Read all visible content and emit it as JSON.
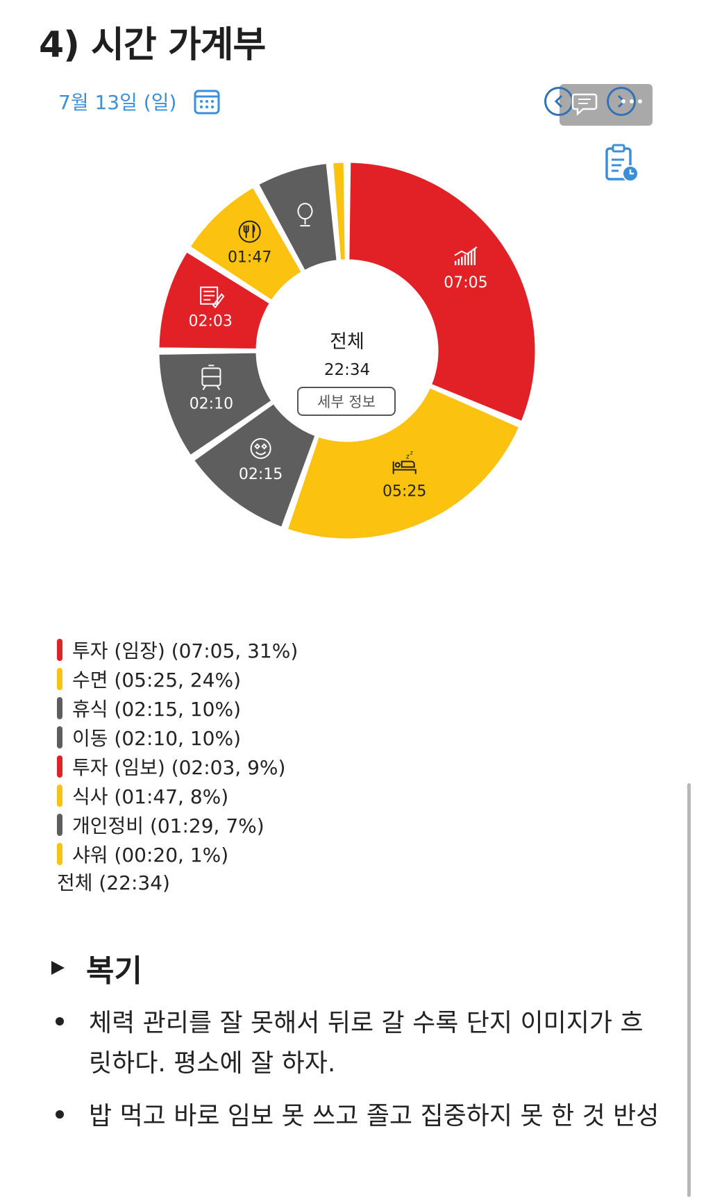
{
  "heading": "4) 시간 가계부",
  "date": "7월 13일 (일)",
  "icons": {
    "calendar": "calendar-icon",
    "prev": "chevron-left-icon",
    "next": "chevron-right-icon",
    "comment": "comment-icon",
    "more": "more-icon",
    "report": "clipboard-clock-icon"
  },
  "center": {
    "title": "전체",
    "total": "22:34",
    "detail_button": "세부 정보"
  },
  "colors": {
    "red": "#e22127",
    "yellow": "#fbc30f",
    "gray": "#5e5e5e",
    "link_blue": "#3a8fd8"
  },
  "chart_data": {
    "type": "donut",
    "total": "22:34",
    "segments": [
      {
        "name": "투자 (임장)",
        "time": "07:05",
        "minutes": 425,
        "percent": 31,
        "color": "#e22127",
        "icon": "growth-chart-icon"
      },
      {
        "name": "수면",
        "time": "05:25",
        "minutes": 325,
        "percent": 24,
        "color": "#fbc30f",
        "icon": "bed-icon"
      },
      {
        "name": "휴식",
        "time": "02:15",
        "minutes": 135,
        "percent": 10,
        "color": "#5e5e5e",
        "icon": "smiley-icon"
      },
      {
        "name": "이동",
        "time": "02:10",
        "minutes": 130,
        "percent": 10,
        "color": "#5e5e5e",
        "icon": "train-icon"
      },
      {
        "name": "투자 (임보)",
        "time": "02:03",
        "minutes": 123,
        "percent": 9,
        "color": "#e22127",
        "icon": "report-pen-icon"
      },
      {
        "name": "식사",
        "time": "01:47",
        "minutes": 107,
        "percent": 8,
        "color": "#fbc30f",
        "icon": "utensils-icon"
      },
      {
        "name": "개인정비",
        "time": "01:29",
        "minutes": 89,
        "percent": 7,
        "color": "#5e5e5e",
        "icon": "mirror-icon"
      },
      {
        "name": "샤워",
        "time": "00:20",
        "minutes": 20,
        "percent": 1,
        "color": "#fbc30f",
        "icon": ""
      }
    ]
  },
  "legend": {
    "items": [
      "투자 (임장) (07:05, 31%)",
      "수면 (05:25, 24%)",
      "휴식 (02:15, 10%)",
      "이동 (02:10, 10%)",
      "투자 (임보) (02:03, 9%)",
      "식사 (01:47, 8%)",
      "개인정비 (01:29, 7%)",
      "샤워 (00:20, 1%)"
    ],
    "total": "전체 (22:34)"
  },
  "review": {
    "title": "복기",
    "bullets": [
      "체력 관리를 잘 못해서 뒤로 갈 수록 단지 이미지가 흐릿하다. 평소에 잘 하자.",
      "밥 먹고 바로 임보 못 쓰고 졸고 집중하지 못 한 것 반성"
    ]
  }
}
